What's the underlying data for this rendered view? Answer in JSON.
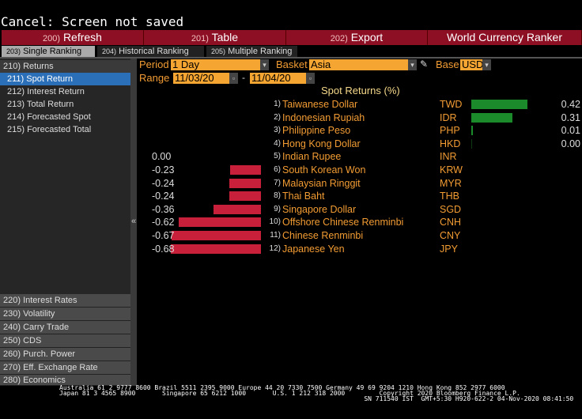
{
  "title": "Cancel: Screen not saved",
  "toolbar": [
    {
      "num": "200)",
      "label": "Refresh"
    },
    {
      "num": "201)",
      "label": "Table"
    },
    {
      "num": "202)",
      "label": "Export"
    }
  ],
  "app_title": "World Currency Ranker",
  "tabs": [
    {
      "num": "203)",
      "label": "Single Ranking",
      "active": true
    },
    {
      "num": "204)",
      "label": "Historical Ranking"
    },
    {
      "num": "205)",
      "label": "Multiple Ranking"
    }
  ],
  "sidebar": {
    "top": [
      {
        "label": "210) Returns"
      },
      {
        "label": "211) Spot Return",
        "selected": true
      },
      {
        "label": "212) Interest Return"
      },
      {
        "label": "213) Total Return"
      },
      {
        "label": "214) Forecasted Spot"
      },
      {
        "label": "215) Forecasted Total"
      }
    ],
    "bottom": [
      {
        "label": "220) Interest Rates"
      },
      {
        "label": "230) Volatility"
      },
      {
        "label": "240) Carry Trade"
      },
      {
        "label": "250) CDS"
      },
      {
        "label": "260) Purch. Power"
      },
      {
        "label": "270) Eff. Exchange Rate"
      },
      {
        "label": "280) Economics"
      }
    ],
    "collapse_glyph": "«"
  },
  "controls": {
    "period_label": "Period",
    "period_value": "1 Day",
    "basket_label": "Basket",
    "basket_value": "Asia",
    "base_label": "Base",
    "base_value": "USD",
    "range_label": "Range",
    "range_from": "11/03/20",
    "range_sep": "-",
    "range_to": "11/04/20"
  },
  "colors": {
    "positive": "#1a8a2a",
    "negative": "#c8203a",
    "accent": "#f39c33"
  },
  "chart_data": {
    "type": "bar",
    "title": "Spot Returns (%)",
    "rows": [
      {
        "rank": "1)",
        "name": "Taiwanese Dollar",
        "code": "TWD",
        "value": 0.42,
        "label": "0.42"
      },
      {
        "rank": "2)",
        "name": "Indonesian Rupiah",
        "code": "IDR",
        "value": 0.31,
        "label": "0.31"
      },
      {
        "rank": "3)",
        "name": "Philippine Peso",
        "code": "PHP",
        "value": 0.01,
        "label": "0.01"
      },
      {
        "rank": "4)",
        "name": "Hong Kong Dollar",
        "code": "HKD",
        "value": 0.0,
        "label": "0.00"
      },
      {
        "rank": "5)",
        "name": "Indian Rupee",
        "code": "INR",
        "value": 0.0,
        "label": "0.00"
      },
      {
        "rank": "6)",
        "name": "South Korean Won",
        "code": "KRW",
        "value": -0.23,
        "label": "-0.23"
      },
      {
        "rank": "7)",
        "name": "Malaysian Ringgit",
        "code": "MYR",
        "value": -0.24,
        "label": "-0.24"
      },
      {
        "rank": "8)",
        "name": "Thai Baht",
        "code": "THB",
        "value": -0.24,
        "label": "-0.24"
      },
      {
        "rank": "9)",
        "name": "Singapore Dollar",
        "code": "SGD",
        "value": -0.36,
        "label": "-0.36"
      },
      {
        "rank": "10)",
        "name": "Offshore Chinese Renminbi",
        "code": "CNH",
        "value": -0.62,
        "label": "-0.62"
      },
      {
        "rank": "11)",
        "name": "Chinese Renminbi",
        "code": "CNY",
        "value": -0.67,
        "label": "-0.67"
      },
      {
        "rank": "12)",
        "name": "Japanese Yen",
        "code": "JPY",
        "value": -0.68,
        "label": "-0.68"
      }
    ]
  },
  "footer": {
    "line1": "Australia 61 2 9777 8600 Brazil 5511 2395 9000 Europe 44 20 7330 7500 Germany 49 69 9204 1210 Hong Kong 852 2977 6000",
    "line2": "Japan 81 3 4565 8900       Singapore 65 6212 1000       U.S. 1 212 318 2000         Copyright 2020 Bloomberg Finance L.P.",
    "line3": "                                                                                SN 711540 IST  GMT+5:30 H920-622-2 04-Nov-2020 08:41:50"
  }
}
